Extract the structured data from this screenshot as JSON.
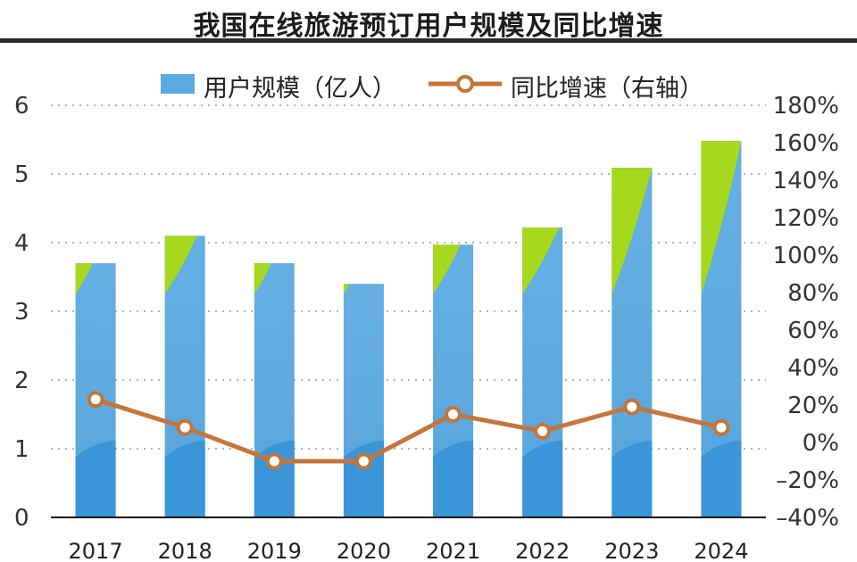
{
  "chart_data": {
    "type": "bar",
    "title": "我国在线旅游预订用户规模及同比增速",
    "categories": [
      "2017",
      "2018",
      "2019",
      "2020",
      "2021",
      "2022",
      "2023",
      "2024"
    ],
    "series": [
      {
        "name": "用户规模（亿人）",
        "type": "bar",
        "axis": "left",
        "values": [
          3.7,
          4.1,
          3.7,
          3.4,
          3.97,
          4.22,
          5.09,
          5.48
        ],
        "color": "#5aa9e0",
        "accent_color": "#a6d81e"
      },
      {
        "name": "同比增速（右轴）",
        "type": "line",
        "axis": "right",
        "values": [
          23,
          8,
          -10,
          -10,
          15,
          6,
          19,
          8
        ],
        "unit": "%",
        "color": "#c5753a"
      }
    ],
    "y_left": {
      "ylim": [
        0,
        6
      ],
      "ticks": [
        "0",
        "1",
        "2",
        "3",
        "4",
        "5",
        "6"
      ]
    },
    "y_right": {
      "ylim": [
        -40,
        180
      ],
      "ticks": [
        "–40%",
        "–20%",
        "0%",
        "20%",
        "40%",
        "60%",
        "80%",
        "100%",
        "120%",
        "140%",
        "160%",
        "180%"
      ]
    },
    "grid": "dotted horizontal",
    "legend_position": "top"
  }
}
